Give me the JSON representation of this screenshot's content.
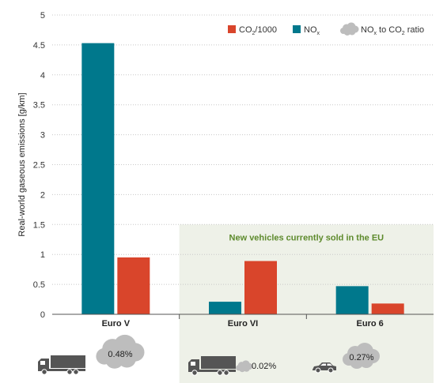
{
  "chart_data": {
    "type": "bar",
    "ylabel": "Real-world gaseous emissions [g/km]",
    "ylim": [
      0,
      5
    ],
    "yticks": [
      "0",
      "0.5",
      "1",
      "1.5",
      "2",
      "2.5",
      "3",
      "3.5",
      "4",
      "4.5",
      "5"
    ],
    "grid": true,
    "legend_position": "top-right",
    "categories": [
      "Euro V",
      "Euro VI",
      "Euro 6"
    ],
    "series": [
      {
        "name": "NOx",
        "legend_main": "NO",
        "legend_sub": "x",
        "color": "#00788c",
        "values": [
          4.53,
          0.21,
          0.47
        ]
      },
      {
        "name": "CO2/1000",
        "legend_main": "CO",
        "legend_sub": "2",
        "legend_suffix": "/1000",
        "color": "#d9452b",
        "values": [
          0.95,
          0.89,
          0.18
        ]
      }
    ],
    "ratio_legend": {
      "main_1": "NO",
      "sub_1": "x",
      "mid": " to CO",
      "sub_2": "2",
      "suffix": " ratio"
    },
    "ratios": [
      {
        "category": "Euro V",
        "label": "0.48%",
        "vehicle_icon": "truck-icon",
        "cloud_size": "large"
      },
      {
        "category": "Euro VI",
        "label": "0.02%",
        "vehicle_icon": "truck-icon",
        "cloud_size": "small"
      },
      {
        "category": "Euro 6",
        "label": "0.27%",
        "vehicle_icon": "car-icon",
        "cloud_size": "medium"
      }
    ],
    "highlight_region": {
      "label": "New vehicles currently sold in the EU",
      "categories": [
        "Euro VI",
        "Euro 6"
      ],
      "fill": "#eef1e8",
      "text_color": "#5d8a2c"
    }
  }
}
